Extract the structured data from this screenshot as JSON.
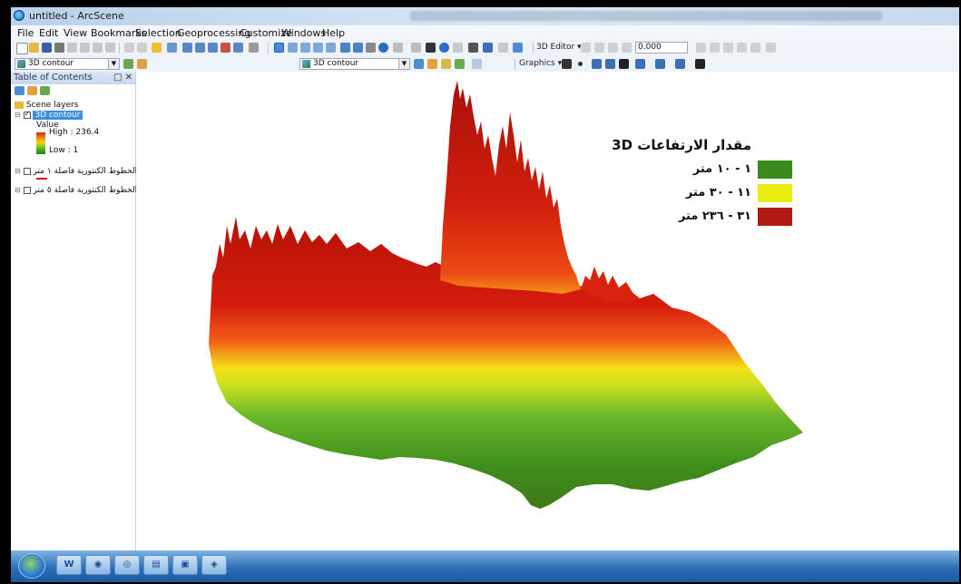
{
  "window": {
    "title": "untitled - ArcScene"
  },
  "menu": [
    "File",
    "Edit",
    "View",
    "Bookmarks",
    "Selection",
    "Geoprocessing",
    "Customize",
    "Windows",
    "Help"
  ],
  "toolbar1": {
    "editor_label": "3D Editor ▾",
    "input_value": "0.000"
  },
  "toolbar2": {
    "layer_combo": "3D contour",
    "layer_combo2": "3D contour",
    "graphics_label": "Graphics ▾"
  },
  "toc": {
    "title": "Table of Contents",
    "pane_buttons": "□ ✕",
    "group": "Scene layers",
    "layer_selected": "3D contour",
    "value_label": "Value",
    "high_label": "High : 236.4",
    "low_label": "Low : 1",
    "layer2": "الخطوط الكنتورية فاصلة ٥ متر",
    "layer3": "الخطوط الكنتورية فاصلة ١ متر"
  },
  "legend": {
    "title": "مقدار الارتفاعات 3D",
    "items": [
      {
        "label": "١ - ١٠ متر",
        "color": "#3a8a1c"
      },
      {
        "label": "١١ - ٣٠ متر",
        "color": "#e8ee10"
      },
      {
        "label": "٣١ - ٢٣٦ متر",
        "color": "#b01a12"
      }
    ]
  },
  "taskbar": {
    "icons": [
      "W",
      "◉",
      "◎",
      "▤",
      "▣",
      "◈"
    ]
  },
  "colors": {
    "ramp_high": "#e02010",
    "ramp_mid": "#f4d515",
    "ramp_low": "#1c7d10"
  }
}
